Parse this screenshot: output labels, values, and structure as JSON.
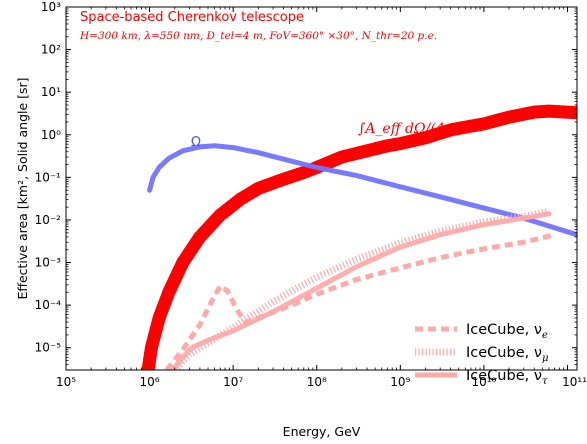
{
  "chart_data": {
    "type": "line",
    "title": "Space-based Cherenkov telescope",
    "subtitle": "H=300 km, λ=550 nm, D_tel=4 m, FoV=360° ×30°, N_thr=20 p.e.",
    "xlabel": "Energy, GeV",
    "ylabel": "Effective area [km², Solid angle [sr]",
    "xscale": "log",
    "yscale": "log",
    "xlim": [
      100000,
      130000000000
    ],
    "ylim": [
      3e-06,
      1000
    ],
    "grid": false,
    "legend_position": "lower-right",
    "x_ticks": [
      {
        "value": 100000,
        "label": "10⁵"
      },
      {
        "value": 1000000,
        "label": "10⁶"
      },
      {
        "value": 10000000,
        "label": "10⁷"
      },
      {
        "value": 100000000,
        "label": "10⁸"
      },
      {
        "value": 1000000000,
        "label": "10⁹"
      },
      {
        "value": 10000000000,
        "label": "10¹⁰"
      },
      {
        "value": 100000000000,
        "label": "10¹¹"
      }
    ],
    "y_ticks": [
      {
        "value": 1e-05,
        "label": "10⁻⁵"
      },
      {
        "value": 0.0001,
        "label": "10⁻⁴"
      },
      {
        "value": 0.001,
        "label": "10⁻³"
      },
      {
        "value": 0.01,
        "label": "10⁻²"
      },
      {
        "value": 0.1,
        "label": "10⁻¹"
      },
      {
        "value": 1,
        "label": "10⁰"
      },
      {
        "value": 10,
        "label": "10¹"
      },
      {
        "value": 100,
        "label": "10²"
      },
      {
        "value": 1000,
        "label": "10³"
      }
    ],
    "series": [
      {
        "label": "∫A_eff dΩ/(4π)",
        "color": "#ff0000",
        "style": "solid-thick",
        "points": [
          [
            960000,
            3e-06
          ],
          [
            1050000,
            1e-05
          ],
          [
            1300000,
            5e-05
          ],
          [
            1700000,
            0.0002
          ],
          [
            2500000,
            0.001
          ],
          [
            4000000,
            0.004
          ],
          [
            7000000,
            0.013
          ],
          [
            12000000,
            0.03
          ],
          [
            20000000,
            0.055
          ],
          [
            40000000,
            0.09
          ],
          [
            70000000,
            0.13
          ],
          [
            100000000,
            0.17
          ],
          [
            200000000,
            0.3
          ],
          [
            400000000,
            0.42
          ],
          [
            700000000,
            0.55
          ],
          [
            1000000000,
            0.62
          ],
          [
            2000000000,
            0.85
          ],
          [
            4000000000,
            1.3
          ],
          [
            7000000000,
            1.6
          ],
          [
            10000000000,
            1.8
          ],
          [
            20000000000,
            2.6
          ],
          [
            40000000000,
            3.4
          ],
          [
            60000000000,
            3.6
          ],
          [
            130000000000,
            3.3
          ]
        ]
      },
      {
        "label": "Ω",
        "color": "#7373ff",
        "style": "solid",
        "points": [
          [
            1000000,
            0.05
          ],
          [
            1100000,
            0.1
          ],
          [
            1300000,
            0.17
          ],
          [
            1700000,
            0.28
          ],
          [
            2500000,
            0.42
          ],
          [
            4000000,
            0.52
          ],
          [
            6000000,
            0.55
          ],
          [
            10000000,
            0.5
          ],
          [
            20000000,
            0.38
          ],
          [
            50000000,
            0.24
          ],
          [
            100000000,
            0.17
          ],
          [
            300000000,
            0.11
          ],
          [
            1000000000,
            0.06
          ],
          [
            3000000000,
            0.035
          ],
          [
            10000000000,
            0.019
          ],
          [
            30000000000,
            0.011
          ],
          [
            130000000000,
            0.0045
          ]
        ]
      },
      {
        "label": "IceCube, ν_e",
        "color": "#ffaaaa",
        "style": "dashed",
        "points": [
          [
            1600000,
            3e-06
          ],
          [
            2500000,
            9e-06
          ],
          [
            4000000,
            3.5e-05
          ],
          [
            5500000,
            0.00012
          ],
          [
            7000000,
            0.00028
          ],
          [
            8500000,
            0.00022
          ],
          [
            11000000,
            8e-05
          ],
          [
            14000000,
            4e-05
          ],
          [
            20000000,
            5e-05
          ],
          [
            50000000,
            0.0001
          ],
          [
            100000000,
            0.00018
          ],
          [
            300000000,
            0.0004
          ],
          [
            1000000000,
            0.00075
          ],
          [
            3000000000,
            0.0013
          ],
          [
            10000000000,
            0.0021
          ],
          [
            30000000000,
            0.003
          ],
          [
            70000000000,
            0.0045
          ]
        ]
      },
      {
        "label": "IceCube, ν_μ",
        "color": "#ffaaaa",
        "style": "hatched",
        "points": [
          [
            2000000,
            3e-06
          ],
          [
            3000000,
            7e-06
          ],
          [
            5000000,
            1.3e-05
          ],
          [
            10000000,
            3e-05
          ],
          [
            30000000,
            0.00012
          ],
          [
            100000000,
            0.00045
          ],
          [
            300000000,
            0.0012
          ],
          [
            1000000000,
            0.0029
          ],
          [
            3000000000,
            0.0055
          ],
          [
            10000000000,
            0.009
          ],
          [
            30000000000,
            0.012
          ],
          [
            60000000000,
            0.016
          ]
        ]
      },
      {
        "label": "IceCube, ν_τ",
        "color": "#ffaaaa",
        "style": "solid",
        "points": [
          [
            1900000,
            3e-06
          ],
          [
            2500000,
            6e-06
          ],
          [
            3200000,
            1e-05
          ],
          [
            5000000,
            1.5e-05
          ],
          [
            10000000,
            2.5e-05
          ],
          [
            30000000,
            7e-05
          ],
          [
            100000000,
            0.00025
          ],
          [
            300000000,
            0.0008
          ],
          [
            1000000000,
            0.0023
          ],
          [
            3000000000,
            0.0045
          ],
          [
            10000000000,
            0.0078
          ],
          [
            30000000000,
            0.011
          ],
          [
            60000000000,
            0.014
          ]
        ]
      }
    ],
    "annotations": [
      {
        "text": "∫A_eff dΩ/(4π)",
        "color": "#ff0000"
      },
      {
        "text": "Ω",
        "color": "#4d4dff"
      }
    ],
    "legend": [
      {
        "text": "IceCube, ν",
        "sub": "e"
      },
      {
        "text": "IceCube, ν",
        "sub": "μ"
      },
      {
        "text": "IceCube, ν",
        "sub": "τ"
      }
    ]
  }
}
